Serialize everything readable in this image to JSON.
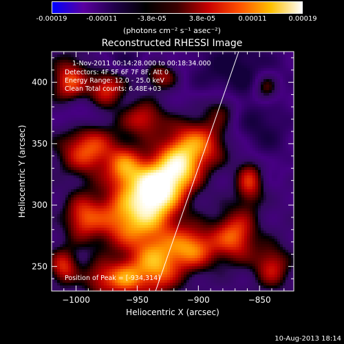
{
  "colorbar": {
    "ticks": [
      "-0.00019",
      "-0.00011",
      "-3.8e-05",
      "3.8e-05",
      "0.00011",
      "0.00019"
    ],
    "units": "(photons cm⁻² s⁻¹ asec⁻²)",
    "range": [
      -0.00019,
      0.00019
    ],
    "colors": [
      "#0000ff",
      "#5a00a0",
      "#20004a",
      "#000000",
      "#3a0000",
      "#c80000",
      "#ff5000",
      "#ffc000",
      "#ffffff"
    ]
  },
  "chart_data": {
    "type": "heatmap",
    "title": "Reconstructed RHESSI Image",
    "xlabel": "Heliocentric X (arcsec)",
    "ylabel": "Heliocentric Y (arcsec)",
    "xlim": [
      -1020,
      -822
    ],
    "ylim": [
      230,
      425
    ],
    "xticks": [
      -1000,
      -950,
      -900,
      -850
    ],
    "yticks": [
      250,
      300,
      350,
      400
    ],
    "xtick_labels": [
      "−1000",
      "−950",
      "−900",
      "−850"
    ],
    "ytick_labels": [
      "250",
      "300",
      "350",
      "400"
    ],
    "annotations": [
      "1-Nov-2011 00:14:28.000 to 00:18:34.000",
      "Detectors: 4F 5F 6F 7F 8F, Att 0",
      "Energy Range: 12.0 - 25.0 keV",
      "Clean     Total counts: 6.48E+03"
    ],
    "peak_label": "Position of Peak = [-934,314]",
    "peak": [
      -934,
      314
    ],
    "limb_line": [
      [
        -935,
        230
      ],
      [
        -867,
        425
      ]
    ],
    "sources": [
      {
        "x": -935,
        "y": 314,
        "amp": 1.0,
        "sx": 14,
        "sy": 16
      },
      {
        "x": -955,
        "y": 290,
        "amp": 0.75,
        "sx": 22,
        "sy": 18
      },
      {
        "x": -915,
        "y": 330,
        "amp": 0.7,
        "sx": 12,
        "sy": 14
      },
      {
        "x": -900,
        "y": 350,
        "amp": 0.6,
        "sx": 18,
        "sy": 14
      },
      {
        "x": -935,
        "y": 250,
        "amp": 0.7,
        "sx": 14,
        "sy": 16
      },
      {
        "x": -960,
        "y": 240,
        "amp": 0.55,
        "sx": 10,
        "sy": 10
      },
      {
        "x": -905,
        "y": 265,
        "amp": 0.65,
        "sx": 14,
        "sy": 12
      },
      {
        "x": -870,
        "y": 275,
        "amp": 0.6,
        "sx": 12,
        "sy": 14
      },
      {
        "x": -858,
        "y": 320,
        "amp": 0.55,
        "sx": 8,
        "sy": 14
      },
      {
        "x": -990,
        "y": 345,
        "amp": 0.6,
        "sx": 16,
        "sy": 14
      },
      {
        "x": -1005,
        "y": 400,
        "amp": 0.55,
        "sx": 10,
        "sy": 14
      },
      {
        "x": -975,
        "y": 395,
        "amp": 0.5,
        "sx": 10,
        "sy": 10
      },
      {
        "x": -995,
        "y": 290,
        "amp": 0.45,
        "sx": 10,
        "sy": 12
      },
      {
        "x": -945,
        "y": 370,
        "amp": 0.45,
        "sx": 12,
        "sy": 10
      },
      {
        "x": -930,
        "y": 405,
        "amp": 0.4,
        "sx": 10,
        "sy": 8
      },
      {
        "x": -1010,
        "y": 250,
        "amp": 0.5,
        "sx": 8,
        "sy": 10
      },
      {
        "x": -980,
        "y": 240,
        "amp": 0.4,
        "sx": 10,
        "sy": 10
      },
      {
        "x": -880,
        "y": 380,
        "amp": 0.35,
        "sx": 10,
        "sy": 10
      },
      {
        "x": -845,
        "y": 395,
        "amp": 0.5,
        "sx": 8,
        "sy": 10
      },
      {
        "x": -840,
        "y": 250,
        "amp": 0.45,
        "sx": 10,
        "sy": 12
      },
      {
        "x": -960,
        "y": 330,
        "amp": 0.55,
        "sx": 10,
        "sy": 12
      },
      {
        "x": -870,
        "y": 410,
        "amp": -0.35,
        "sx": 30,
        "sy": 20
      },
      {
        "x": -850,
        "y": 360,
        "amp": -0.3,
        "sx": 20,
        "sy": 25
      },
      {
        "x": -1000,
        "y": 375,
        "amp": -0.25,
        "sx": 12,
        "sy": 10
      },
      {
        "x": -960,
        "y": 420,
        "amp": -0.25,
        "sx": 14,
        "sy": 8
      }
    ]
  },
  "footer": "10-Aug-2013 18:14"
}
